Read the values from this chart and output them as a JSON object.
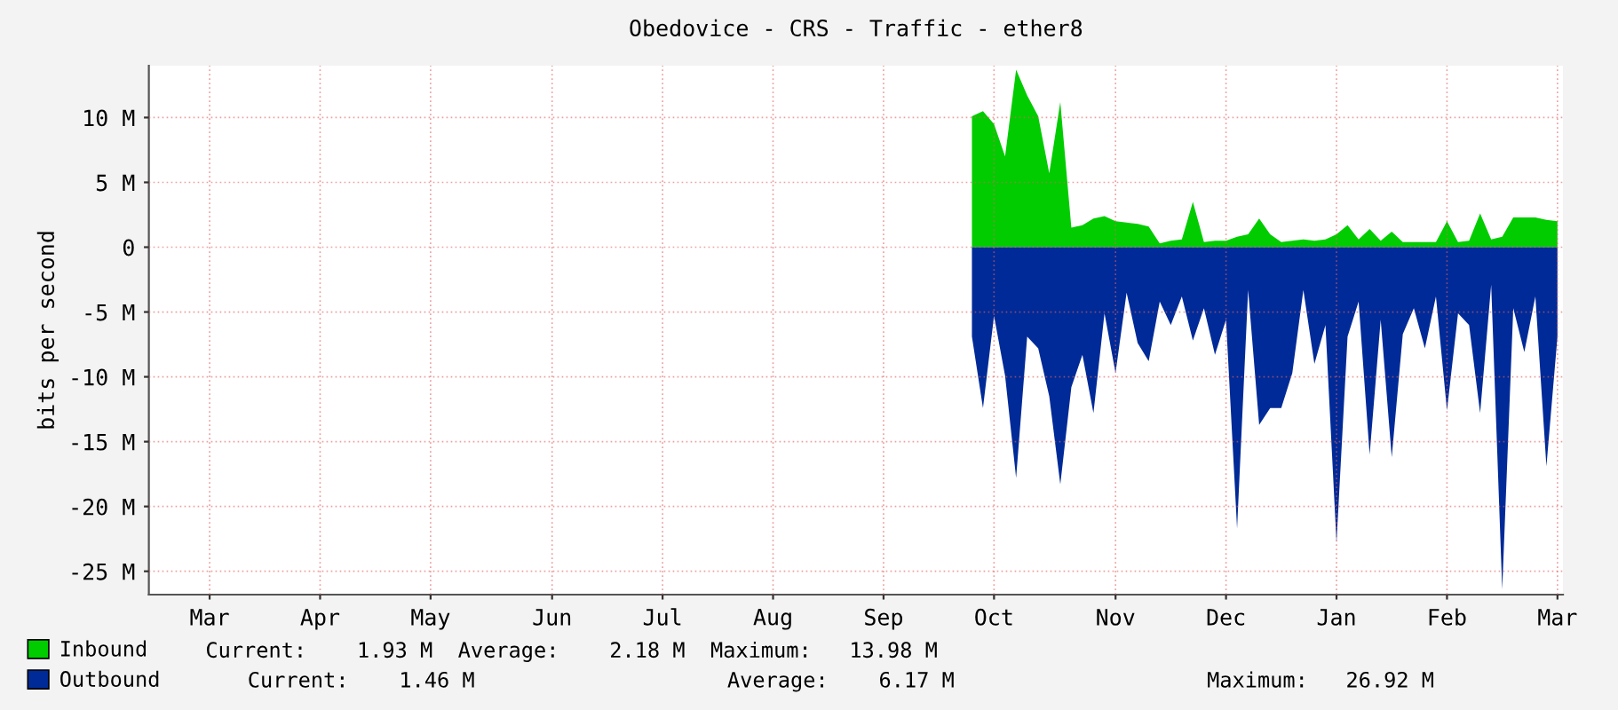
{
  "chart_data": {
    "type": "area",
    "title": "Obedovice - CRS - Traffic - ether8",
    "ylabel": "bits per second",
    "categories": [
      null,
      null,
      null,
      null,
      null,
      "Mar",
      null,
      null,
      null,
      null,
      null,
      null,
      null,
      null,
      null,
      "Apr",
      null,
      null,
      null,
      null,
      null,
      null,
      null,
      null,
      null,
      "May",
      null,
      null,
      null,
      null,
      null,
      null,
      null,
      null,
      null,
      null,
      "Jun",
      null,
      null,
      null,
      null,
      null,
      null,
      null,
      null,
      null,
      "Jul",
      null,
      null,
      null,
      null,
      null,
      null,
      null,
      null,
      null,
      "Aug",
      null,
      null,
      null,
      null,
      null,
      null,
      null,
      null,
      null,
      "Sep",
      null,
      null,
      null,
      null,
      null,
      null,
      null,
      null,
      null,
      "Oct",
      null,
      null,
      null,
      null,
      null,
      null,
      null,
      null,
      null,
      null,
      "Nov",
      null,
      null,
      null,
      null,
      null,
      null,
      null,
      null,
      null,
      "Dec",
      null,
      null,
      null,
      null,
      null,
      null,
      null,
      null,
      null,
      "Jan",
      null,
      null,
      null,
      null,
      null,
      null,
      null,
      null,
      null,
      "Feb",
      null,
      null,
      null,
      null,
      null,
      null,
      null,
      null,
      null,
      "Mar"
    ],
    "ylim": [
      -26.8,
      14
    ],
    "yticks": [
      {
        "value": 10,
        "label": "10 M"
      },
      {
        "value": 5,
        "label": "5 M"
      },
      {
        "value": 0,
        "label": "0"
      },
      {
        "value": -5,
        "label": "-5 M"
      },
      {
        "value": -10,
        "label": "-10 M"
      },
      {
        "value": -15,
        "label": "-15 M"
      },
      {
        "value": -20,
        "label": "-20 M"
      },
      {
        "value": -25,
        "label": "-25 M"
      }
    ],
    "grid": true,
    "legend": "bottom",
    "series": [
      {
        "name": "Inbound",
        "color": "#00cc00",
        "values": [
          null,
          null,
          null,
          null,
          null,
          null,
          null,
          null,
          null,
          null,
          null,
          null,
          null,
          null,
          null,
          null,
          null,
          null,
          null,
          null,
          null,
          null,
          null,
          null,
          null,
          null,
          null,
          null,
          null,
          null,
          null,
          null,
          null,
          null,
          null,
          null,
          null,
          null,
          null,
          null,
          null,
          null,
          null,
          null,
          null,
          null,
          null,
          null,
          null,
          null,
          null,
          null,
          null,
          null,
          null,
          null,
          null,
          null,
          null,
          null,
          null,
          null,
          null,
          null,
          null,
          null,
          null,
          null,
          null,
          null,
          null,
          null,
          null,
          null,
          10.1,
          10.5,
          9.5,
          7.0,
          13.7,
          11.7,
          10.1,
          5.7,
          11.2,
          1.5,
          1.7,
          2.2,
          2.4,
          2.0,
          1.9,
          1.8,
          1.6,
          0.3,
          0.5,
          0.6,
          3.5,
          0.4,
          0.5,
          0.5,
          0.8,
          1.0,
          2.2,
          1.0,
          0.4,
          0.5,
          0.6,
          0.5,
          0.6,
          1.0,
          1.7,
          0.6,
          1.4,
          0.5,
          1.2,
          0.4,
          0.4,
          0.4,
          0.4,
          2.0,
          0.4,
          0.5,
          2.6,
          0.6,
          0.8,
          2.3,
          2.3,
          2.3,
          2.1,
          2.0
        ]
      },
      {
        "name": "Outbound",
        "color": "#002a97",
        "values": [
          null,
          null,
          null,
          null,
          null,
          null,
          null,
          null,
          null,
          null,
          null,
          null,
          null,
          null,
          null,
          null,
          null,
          null,
          null,
          null,
          null,
          null,
          null,
          null,
          null,
          null,
          null,
          null,
          null,
          null,
          null,
          null,
          null,
          null,
          null,
          null,
          null,
          null,
          null,
          null,
          null,
          null,
          null,
          null,
          null,
          null,
          null,
          null,
          null,
          null,
          null,
          null,
          null,
          null,
          null,
          null,
          null,
          null,
          null,
          null,
          null,
          null,
          null,
          null,
          null,
          null,
          null,
          null,
          null,
          null,
          null,
          null,
          null,
          null,
          -6.9,
          -12.4,
          -5.3,
          -9.9,
          -17.8,
          -6.9,
          -7.8,
          -11.5,
          -18.3,
          -10.8,
          -8.3,
          -12.8,
          -5.1,
          -9.7,
          -3.5,
          -7.4,
          -8.8,
          -4.2,
          -6.0,
          -3.8,
          -7.2,
          -4.7,
          -8.3,
          -5.6,
          -21.7,
          -3.3,
          -13.7,
          -12.4,
          -12.4,
          -9.7,
          -3.3,
          -9.0,
          -6.0,
          -22.8,
          -6.9,
          -4.2,
          -16.0,
          -5.6,
          -16.2,
          -6.7,
          -4.7,
          -7.8,
          -3.8,
          -12.6,
          -5.1,
          -6.0,
          -12.8,
          -2.9,
          -26.4,
          -4.7,
          -8.1,
          -3.8,
          -16.9,
          -6.9
        ]
      }
    ],
    "annotations": [
      "Current:    1.93 M  Average:    2.18 M  Maximum:   13.98 M",
      "Current:    1.46 M                    Average:    6.17 M                    Maximum:   26.92 M"
    ]
  }
}
